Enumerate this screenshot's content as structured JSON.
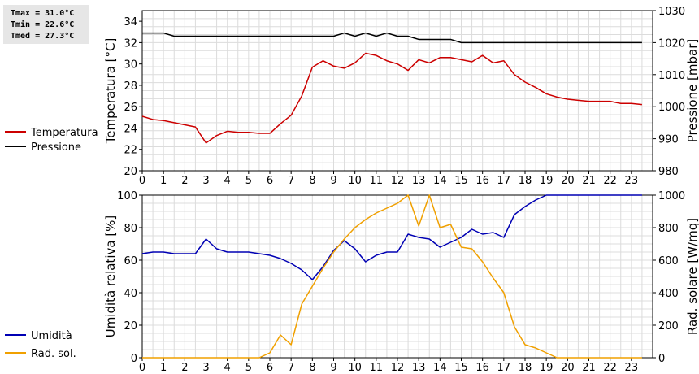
{
  "stats": {
    "tmax": "Tmax = 31.0°C",
    "tmin": "Tmin = 22.6°C",
    "tmed": "Tmed = 27.3°C"
  },
  "chart_data": [
    {
      "type": "line",
      "xlim": [
        0,
        24
      ],
      "x_ticks": [
        "0",
        "1",
        "2",
        "3",
        "4",
        "5",
        "6",
        "7",
        "8",
        "9",
        "10",
        "11",
        "12",
        "13",
        "14",
        "15",
        "16",
        "17",
        "18",
        "19",
        "20",
        "21",
        "22",
        "23"
      ],
      "left_axis": {
        "label": "Temperatura [°C]",
        "ylim": [
          20,
          35
        ],
        "ticks": [
          20,
          22,
          24,
          26,
          28,
          30,
          32,
          34
        ]
      },
      "right_axis": {
        "label": "Pressione [mbar]",
        "ylim": [
          980,
          1030
        ],
        "ticks": [
          980,
          990,
          1000,
          1010,
          1020,
          1030
        ]
      },
      "grid": true,
      "legend_position": "left",
      "series": [
        {
          "name": "Temperatura",
          "axis": "left",
          "color": "#cc0000",
          "x": [
            0,
            0.5,
            1,
            1.5,
            2,
            2.5,
            3,
            3.5,
            4,
            4.5,
            5,
            5.5,
            6,
            6.5,
            7,
            7.5,
            8,
            8.5,
            9,
            9.5,
            10,
            10.5,
            11,
            11.5,
            12,
            12.5,
            13,
            13.5,
            14,
            14.5,
            15,
            15.5,
            16,
            16.5,
            17,
            17.5,
            18,
            18.5,
            19,
            19.5,
            20,
            20.5,
            21,
            21.5,
            22,
            22.5,
            23,
            23.5
          ],
          "values": [
            25.1,
            24.8,
            24.7,
            24.5,
            24.3,
            24.1,
            22.6,
            23.3,
            23.7,
            23.6,
            23.6,
            23.5,
            23.5,
            24.4,
            25.2,
            27.0,
            29.7,
            30.3,
            29.8,
            29.6,
            30.1,
            31.0,
            30.8,
            30.3,
            30.0,
            29.4,
            30.4,
            30.1,
            30.6,
            30.6,
            30.4,
            30.2,
            30.8,
            30.1,
            30.3,
            29.0,
            28.3,
            27.8,
            27.2,
            26.9,
            26.7,
            26.6,
            26.5,
            26.5,
            26.5,
            26.3,
            26.3,
            26.2
          ]
        },
        {
          "name": "Pressione",
          "axis": "right",
          "color": "#000000",
          "x": [
            0,
            0.5,
            1,
            1.5,
            2,
            2.5,
            3,
            3.5,
            4,
            4.5,
            5,
            5.5,
            6,
            6.5,
            7,
            7.5,
            8,
            8.5,
            9,
            9.5,
            10,
            10.5,
            11,
            11.5,
            12,
            12.5,
            13,
            13.5,
            14,
            14.5,
            15,
            15.5,
            16,
            16.5,
            17,
            17.5,
            18,
            18.5,
            19,
            19.5,
            20,
            20.5,
            21,
            21.5,
            22,
            22.5,
            23,
            23.5
          ],
          "values": [
            1023,
            1023,
            1023,
            1022,
            1022,
            1022,
            1022,
            1022,
            1022,
            1022,
            1022,
            1022,
            1022,
            1022,
            1022,
            1022,
            1022,
            1022,
            1022,
            1023,
            1022,
            1023,
            1022,
            1023,
            1022,
            1022,
            1021,
            1021,
            1021,
            1021,
            1020,
            1020,
            1020,
            1020,
            1020,
            1020,
            1020,
            1020,
            1020,
            1020,
            1020,
            1020,
            1020,
            1020,
            1020,
            1020,
            1020,
            1020
          ]
        }
      ]
    },
    {
      "type": "line",
      "xlim": [
        0,
        24
      ],
      "x_ticks": [
        "0",
        "1",
        "2",
        "3",
        "4",
        "5",
        "6",
        "7",
        "8",
        "9",
        "10",
        "11",
        "12",
        "13",
        "14",
        "15",
        "16",
        "17",
        "18",
        "19",
        "20",
        "21",
        "22",
        "23"
      ],
      "left_axis": {
        "label": "Umidità relativa [%]",
        "ylim": [
          0,
          100
        ],
        "ticks": [
          0,
          20,
          40,
          60,
          80,
          100
        ]
      },
      "right_axis": {
        "label": "Rad. solare [W/mq]",
        "ylim": [
          0,
          1000
        ],
        "ticks": [
          0,
          200,
          400,
          600,
          800,
          1000
        ]
      },
      "grid": true,
      "legend_position": "left",
      "series": [
        {
          "name": "Umidità",
          "axis": "left",
          "color": "#0000b4",
          "x": [
            0,
            0.5,
            1,
            1.5,
            2,
            2.5,
            3,
            3.5,
            4,
            4.5,
            5,
            5.5,
            6,
            6.5,
            7,
            7.5,
            8,
            8.5,
            9,
            9.5,
            10,
            10.5,
            11,
            11.5,
            12,
            12.5,
            13,
            13.5,
            14,
            14.5,
            15,
            15.5,
            16,
            16.5,
            17,
            17.5,
            18,
            18.5,
            19,
            19.5,
            20,
            20.5,
            21,
            21.5,
            22,
            22.5,
            23,
            23.5
          ],
          "values": [
            64,
            65,
            65,
            64,
            64,
            64,
            73,
            67,
            65,
            65,
            65,
            64,
            63,
            61,
            58,
            54,
            48,
            56,
            66,
            72,
            67,
            59,
            63,
            65,
            65,
            76,
            74,
            73,
            68,
            71,
            74,
            79,
            76,
            77,
            74,
            88,
            93,
            97,
            100,
            100,
            100,
            100,
            100,
            100,
            100,
            100,
            100,
            100
          ]
        },
        {
          "name": "Rad. sol.",
          "axis": "right",
          "color": "#f0a000",
          "x": [
            0,
            0.5,
            1,
            1.5,
            2,
            2.5,
            3,
            3.5,
            4,
            4.5,
            5,
            5.5,
            6,
            6.5,
            7,
            7.5,
            8,
            8.5,
            9,
            9.5,
            10,
            10.5,
            11,
            11.5,
            12,
            12.5,
            13,
            13.5,
            14,
            14.5,
            15,
            15.5,
            16,
            16.5,
            17,
            17.5,
            18,
            18.5,
            19,
            19.5,
            20,
            20.5,
            21,
            21.5,
            22,
            22.5,
            23,
            23.5
          ],
          "values": [
            0,
            0,
            0,
            0,
            0,
            0,
            0,
            0,
            0,
            0,
            0,
            0,
            30,
            140,
            80,
            330,
            440,
            550,
            650,
            730,
            800,
            850,
            890,
            920,
            950,
            1000,
            810,
            1000,
            800,
            820,
            680,
            670,
            590,
            490,
            400,
            190,
            80,
            60,
            30,
            0,
            0,
            0,
            0,
            0,
            0,
            0,
            0,
            0
          ]
        }
      ]
    }
  ]
}
